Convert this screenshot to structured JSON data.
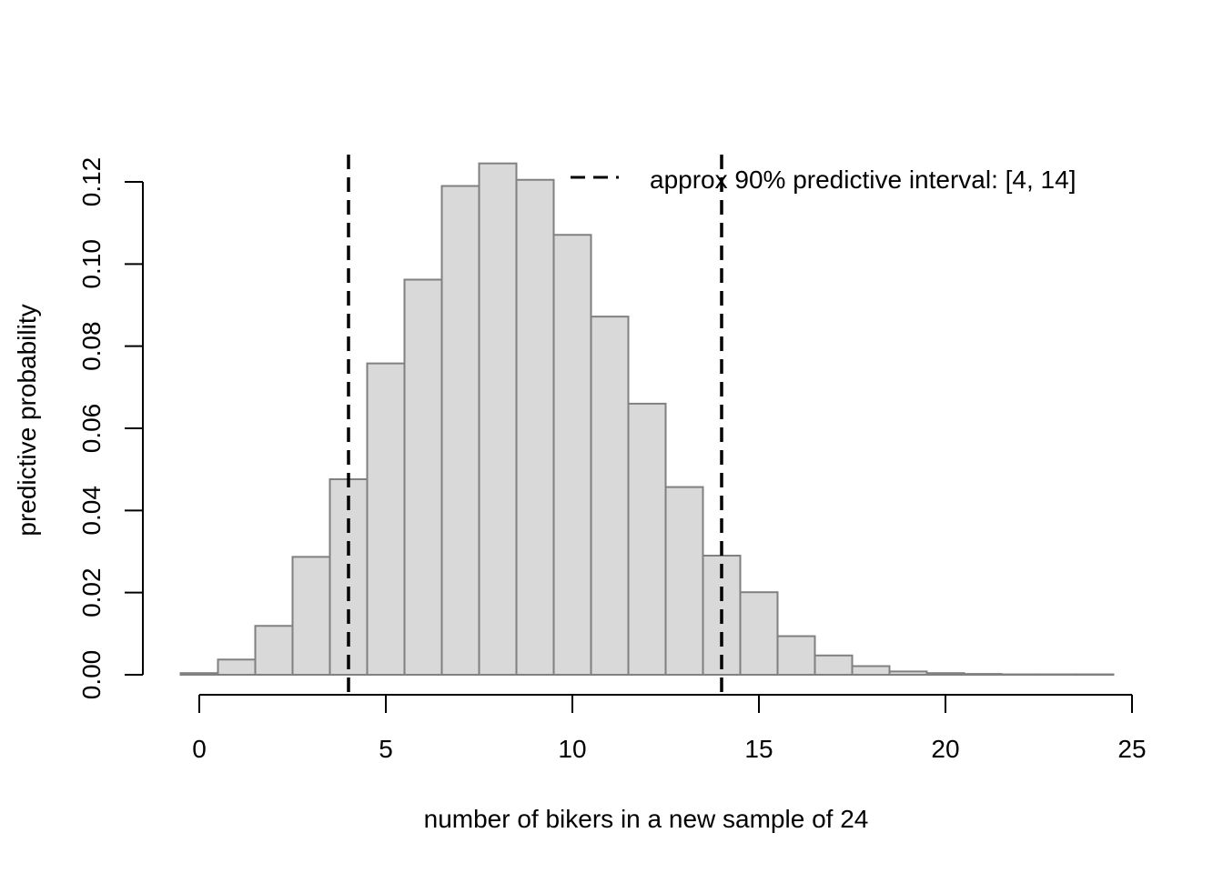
{
  "chart_data": {
    "type": "bar",
    "subtype": "histogram",
    "title": "",
    "xlabel": "number of bikers in a new sample of 24",
    "ylabel": "predictive probability",
    "xlim": [
      0,
      25
    ],
    "ylim": [
      0,
      0.12
    ],
    "x_ticks": [
      "0",
      "5",
      "10",
      "15",
      "20",
      "25"
    ],
    "y_ticks": [
      "0.00",
      "0.02",
      "0.04",
      "0.06",
      "0.08",
      "0.10",
      "0.12"
    ],
    "x": [
      0,
      1,
      2,
      3,
      4,
      5,
      6,
      7,
      8,
      9,
      10,
      11,
      12,
      13,
      14,
      15,
      16,
      17,
      18,
      19,
      20,
      21,
      22,
      23,
      24
    ],
    "values": [
      0.0004,
      0.0037,
      0.0119,
      0.0287,
      0.0476,
      0.0758,
      0.0962,
      0.119,
      0.1245,
      0.1205,
      0.1071,
      0.0872,
      0.066,
      0.0457,
      0.029,
      0.0201,
      0.0094,
      0.0047,
      0.0021,
      0.0008,
      0.0004,
      0.0002,
      0.0001,
      0.0001,
      0.0001
    ],
    "bar_fill": "#d9d9d9",
    "bar_stroke": "#808080",
    "reference_lines": [
      {
        "x": 4,
        "style": "dashed",
        "color": "#000000"
      },
      {
        "x": 14,
        "style": "dashed",
        "color": "#000000"
      }
    ],
    "legend": {
      "position": "top-right",
      "entries": [
        {
          "label": "approx 90% predictive interval: [4, 14]",
          "style": "dashed",
          "color": "#000000"
        }
      ]
    },
    "grid": false
  }
}
